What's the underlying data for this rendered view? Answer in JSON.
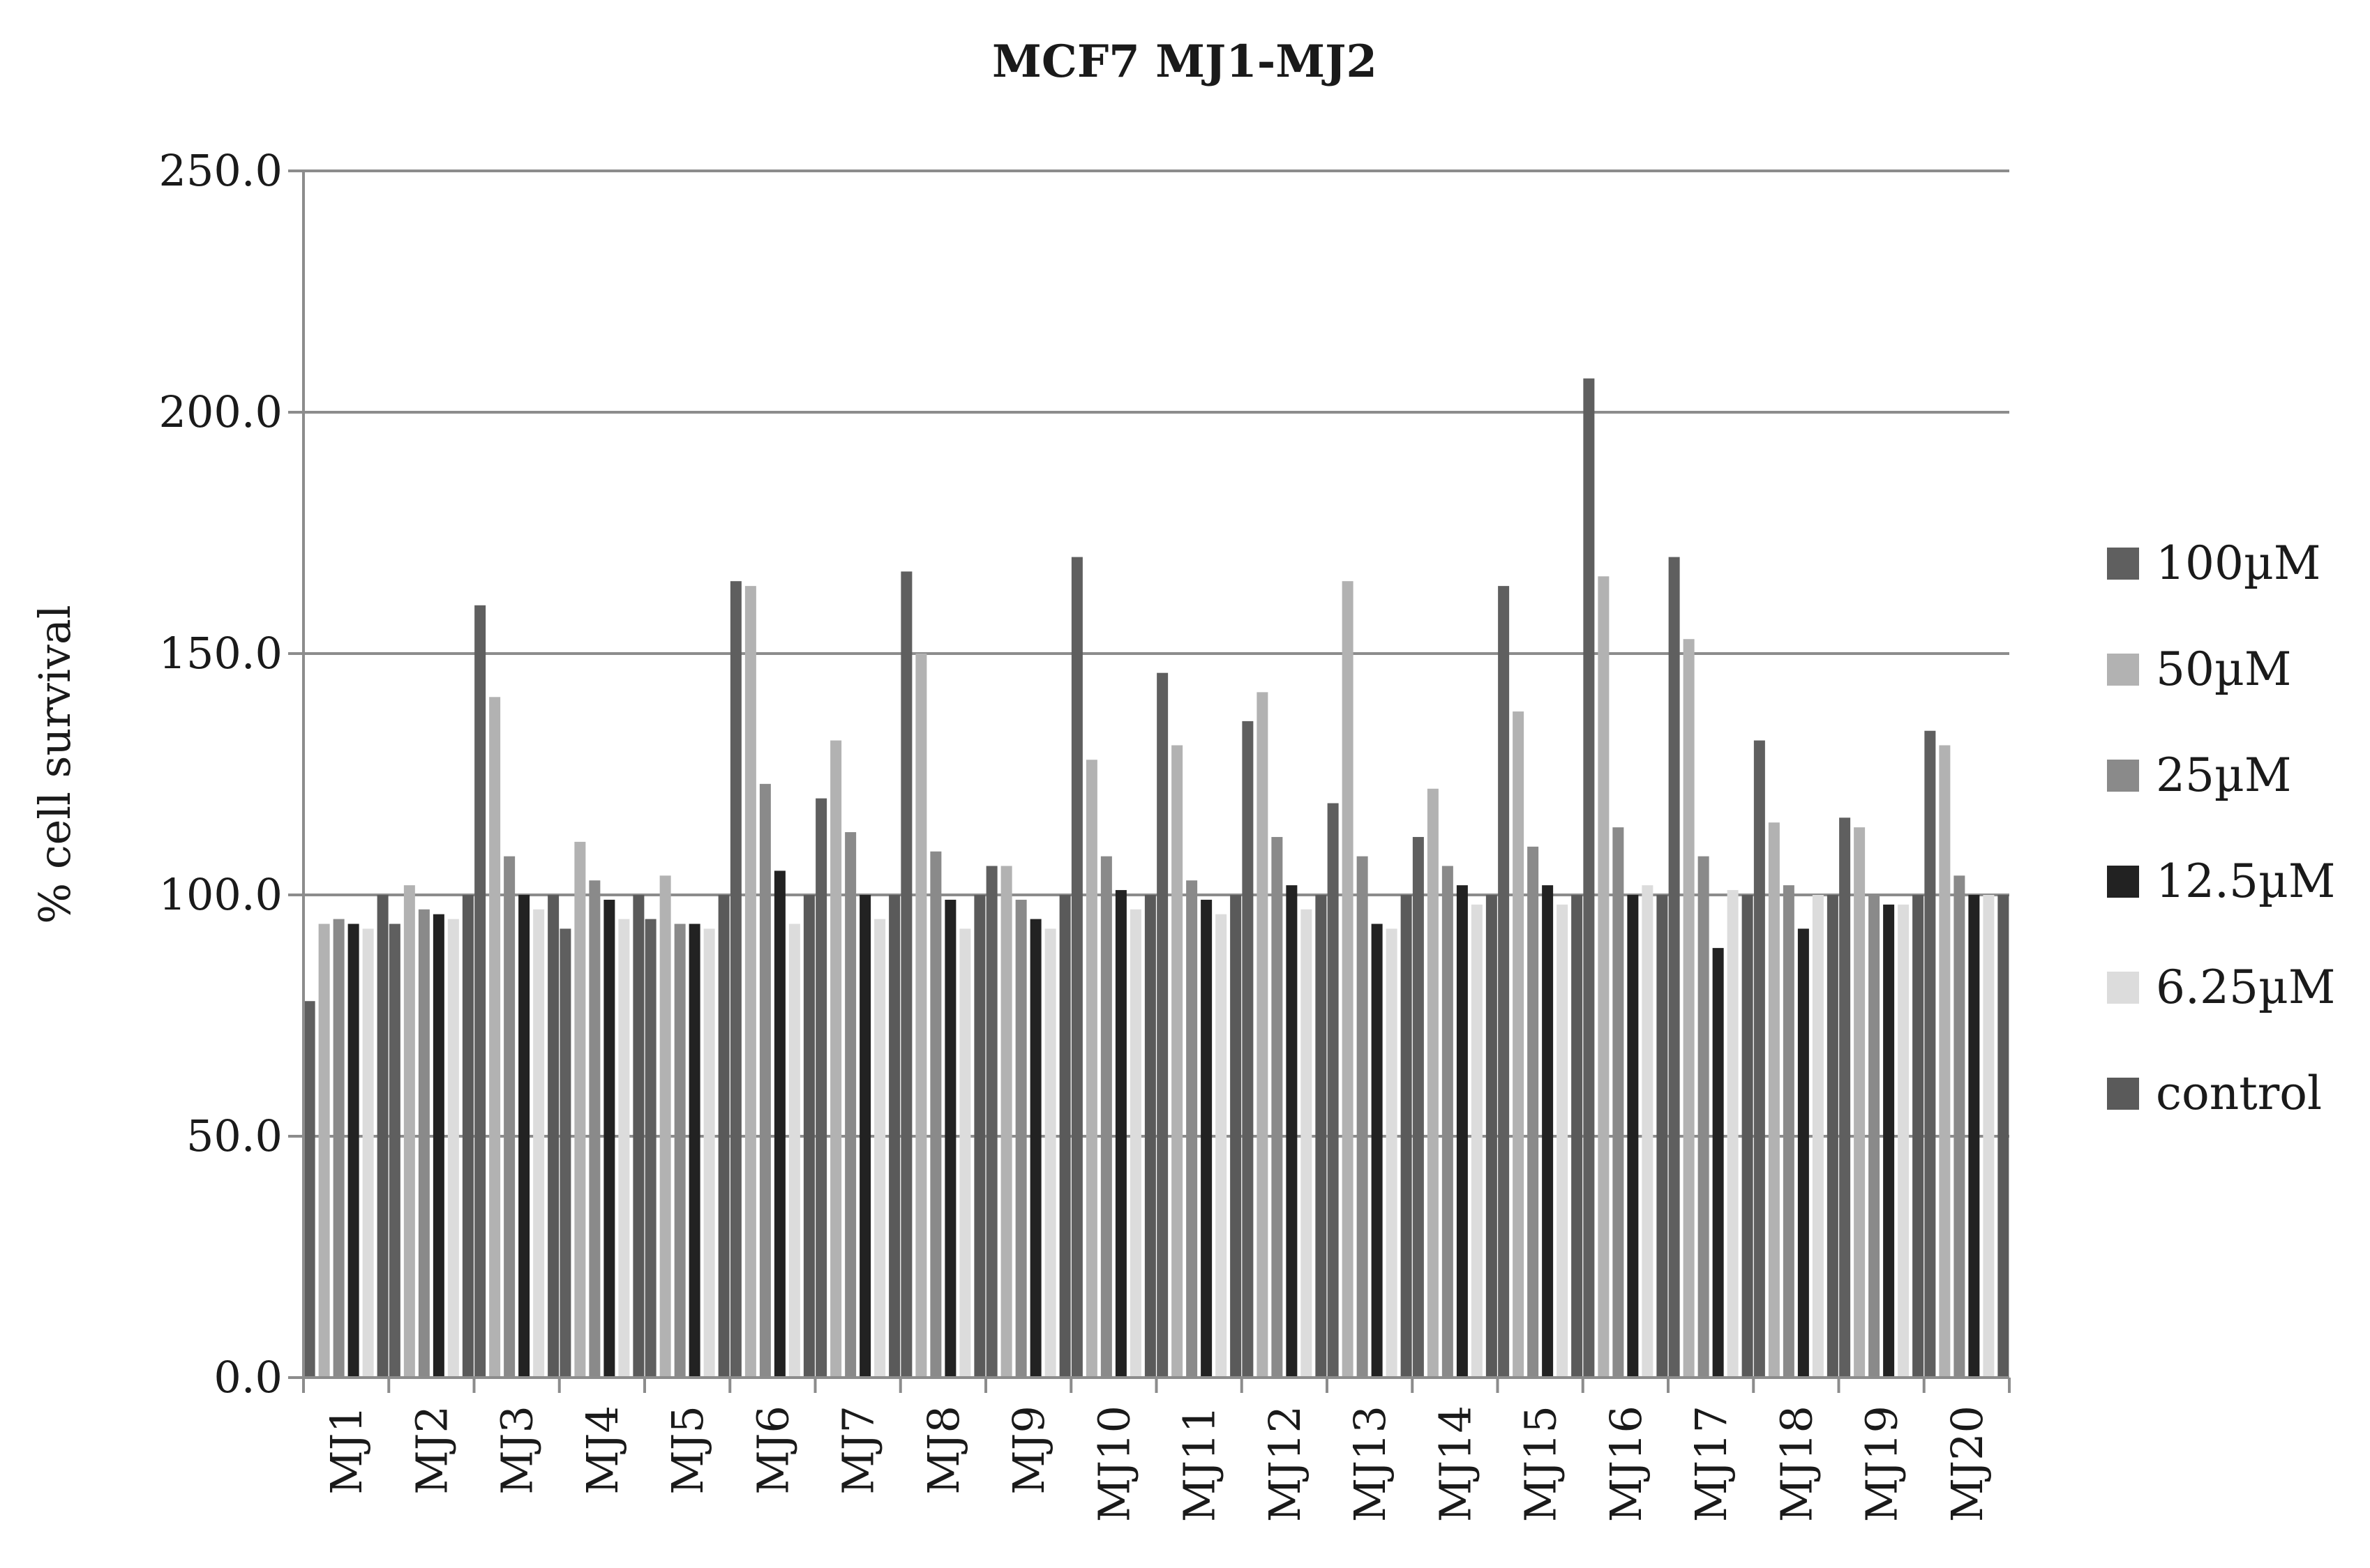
{
  "chart_data": {
    "type": "bar",
    "title": "MCF7 MJ1-MJ2",
    "xlabel": "",
    "ylabel": "% cell survival",
    "ylim": [
      0,
      250
    ],
    "yticks": [
      "0.0",
      "50.0",
      "100.0",
      "150.0",
      "200.0",
      "250.0"
    ],
    "grid": true,
    "legend_position": "right",
    "categories": [
      "MJ1",
      "MJ2",
      "MJ3",
      "MJ4",
      "MJ5",
      "MJ6",
      "MJ7",
      "MJ8",
      "MJ9",
      "MJ10",
      "MJ11",
      "MJ12",
      "MJ13",
      "MJ14",
      "MJ15",
      "MJ16",
      "MJ17",
      "MJ18",
      "MJ19",
      "MJ20"
    ],
    "series": [
      {
        "name": "100µM",
        "color": "#5f5f5f",
        "values": [
          78,
          94,
          160,
          93,
          95,
          165,
          120,
          167,
          106,
          170,
          146,
          136,
          119,
          112,
          164,
          207,
          170,
          132,
          116,
          134
        ]
      },
      {
        "name": "50µM",
        "color": "#b2b2b2",
        "values": [
          94,
          102,
          141,
          111,
          104,
          164,
          132,
          150,
          106,
          128,
          131,
          142,
          165,
          122,
          138,
          166,
          153,
          115,
          114,
          131
        ]
      },
      {
        "name": "25µM",
        "color": "#8a8a8a",
        "values": [
          95,
          97,
          108,
          103,
          94,
          123,
          113,
          109,
          99,
          108,
          103,
          112,
          108,
          106,
          110,
          114,
          108,
          102,
          100,
          104
        ]
      },
      {
        "name": "12.5µM",
        "color": "#222222",
        "values": [
          94,
          96,
          100,
          99,
          94,
          105,
          100,
          99,
          95,
          101,
          99,
          102,
          94,
          102,
          102,
          100,
          89,
          93,
          98,
          100
        ]
      },
      {
        "name": "6.25µM",
        "color": "#dcdcdc",
        "values": [
          93,
          95,
          97,
          95,
          93,
          94,
          95,
          93,
          93,
          97,
          96,
          97,
          93,
          98,
          98,
          102,
          101,
          100,
          98,
          100
        ]
      },
      {
        "name": "control",
        "color": "#5a5a5a",
        "values": [
          100,
          100,
          100,
          100,
          100,
          100,
          100,
          100,
          100,
          100,
          100,
          100,
          100,
          100,
          100,
          100,
          100,
          100,
          100,
          100
        ]
      }
    ]
  }
}
